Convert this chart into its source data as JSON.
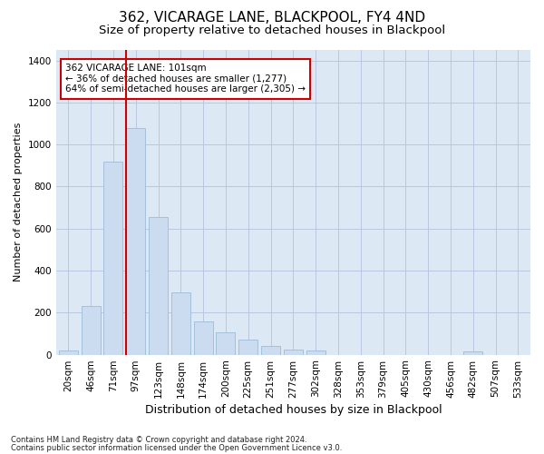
{
  "title1": "362, VICARAGE LANE, BLACKPOOL, FY4 4ND",
  "title2": "Size of property relative to detached houses in Blackpool",
  "xlabel": "Distribution of detached houses by size in Blackpool",
  "ylabel": "Number of detached properties",
  "footer1": "Contains HM Land Registry data © Crown copyright and database right 2024.",
  "footer2": "Contains public sector information licensed under the Open Government Licence v3.0.",
  "categories": [
    "20sqm",
    "46sqm",
    "71sqm",
    "97sqm",
    "123sqm",
    "148sqm",
    "174sqm",
    "200sqm",
    "225sqm",
    "251sqm",
    "277sqm",
    "302sqm",
    "328sqm",
    "353sqm",
    "379sqm",
    "405sqm",
    "430sqm",
    "456sqm",
    "482sqm",
    "507sqm",
    "533sqm"
  ],
  "values": [
    18,
    230,
    920,
    1080,
    655,
    295,
    158,
    108,
    70,
    40,
    25,
    18,
    0,
    0,
    0,
    0,
    0,
    0,
    17,
    0,
    0
  ],
  "bar_color": "#ccdcf0",
  "bar_edge_color": "#9bbcd8",
  "vline_color": "#cc0000",
  "vline_x_index": 3,
  "annotation_text": "362 VICARAGE LANE: 101sqm\n← 36% of detached houses are smaller (1,277)\n64% of semi-detached houses are larger (2,305) →",
  "annotation_box_edgecolor": "#cc0000",
  "ylim": [
    0,
    1450
  ],
  "yticks": [
    0,
    200,
    400,
    600,
    800,
    1000,
    1200,
    1400
  ],
  "bg_color": "#ffffff",
  "plot_bg_color": "#dde8f5",
  "grid_color": "#b8c8e0",
  "title1_fontsize": 11,
  "title2_fontsize": 9.5,
  "xlabel_fontsize": 9,
  "ylabel_fontsize": 8,
  "tick_fontsize": 7.5,
  "footer_fontsize": 6,
  "annotation_fontsize": 7.5
}
